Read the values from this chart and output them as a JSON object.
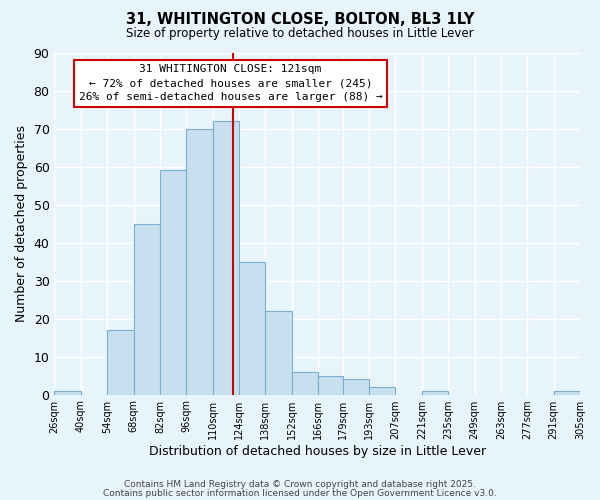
{
  "title1": "31, WHITINGTON CLOSE, BOLTON, BL3 1LY",
  "title2": "Size of property relative to detached houses in Little Lever",
  "xlabel": "Distribution of detached houses by size in Little Lever",
  "ylabel": "Number of detached properties",
  "bar_color": "#c8dff0",
  "bar_edge_color": "#7aaecc",
  "background_color": "#e8f4fc",
  "grid_color": "#ffffff",
  "bin_labels": [
    "26sqm",
    "40sqm",
    "54sqm",
    "68sqm",
    "82sqm",
    "96sqm",
    "110sqm",
    "124sqm",
    "138sqm",
    "152sqm",
    "166sqm",
    "179sqm",
    "193sqm",
    "207sqm",
    "221sqm",
    "235sqm",
    "249sqm",
    "263sqm",
    "277sqm",
    "291sqm",
    "305sqm"
  ],
  "bar_heights": [
    1,
    0,
    17,
    45,
    59,
    70,
    72,
    35,
    22,
    6,
    5,
    4,
    2,
    0,
    1,
    0,
    0,
    0,
    0,
    1
  ],
  "bin_edges": [
    26,
    40,
    54,
    68,
    82,
    96,
    110,
    124,
    138,
    152,
    166,
    179,
    193,
    207,
    221,
    235,
    249,
    263,
    277,
    291,
    305
  ],
  "ylim": [
    0,
    90
  ],
  "yticks": [
    0,
    10,
    20,
    30,
    40,
    50,
    60,
    70,
    80,
    90
  ],
  "vline_x": 121,
  "vline_color": "#cc0000",
  "annotation_title": "31 WHITINGTON CLOSE: 121sqm",
  "annotation_line1": "← 72% of detached houses are smaller (245)",
  "annotation_line2": "26% of semi-detached houses are larger (88) →",
  "annotation_box_color": "#ffffff",
  "annotation_box_edge_color": "#cc0000",
  "footer1": "Contains HM Land Registry data © Crown copyright and database right 2025.",
  "footer2": "Contains public sector information licensed under the Open Government Licence v3.0."
}
